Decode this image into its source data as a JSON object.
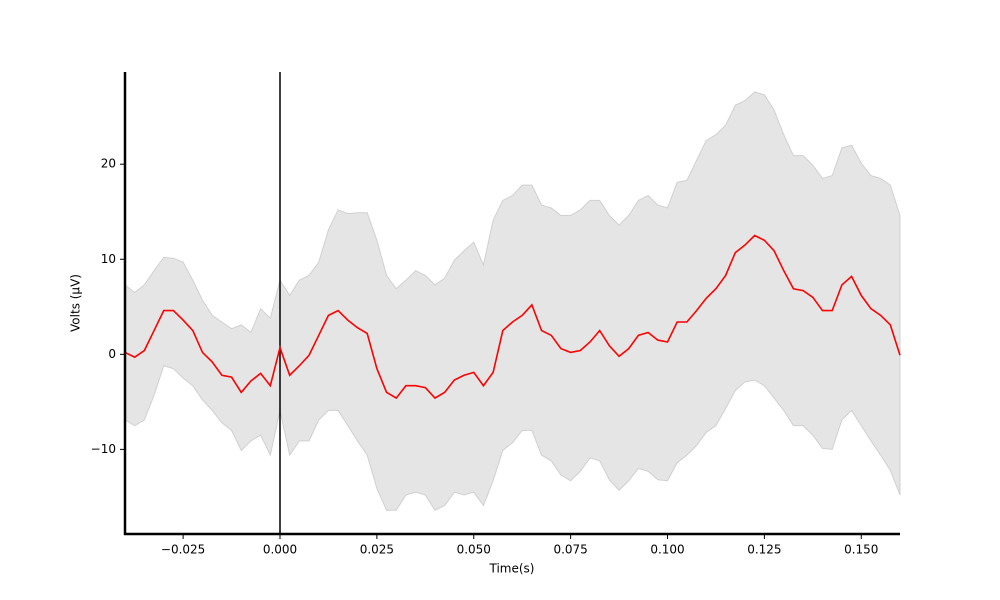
{
  "chart_data": {
    "type": "line",
    "xlabel": "Time(s)",
    "ylabel": "Volts (μV)",
    "xlim": [
      -0.04,
      0.16
    ],
    "ylim": [
      -18.9,
      29.7
    ],
    "xticks": [
      {
        "value": -0.025,
        "label": "−0.025"
      },
      {
        "value": 0,
        "label": "0.000"
      },
      0.025,
      {
        "value": 0.05,
        "label": "0.050"
      },
      0.075,
      {
        "value": 0.1,
        "label": "0.100"
      },
      0.125,
      {
        "value": 0.15,
        "label": "0.150"
      }
    ],
    "yticks": [
      {
        "value": -10,
        "label": "−10"
      },
      0,
      10,
      20
    ],
    "vline": 0,
    "x": [
      -0.04,
      -0.0375,
      -0.035,
      -0.0325,
      -0.03,
      -0.0275,
      -0.025,
      -0.0225,
      -0.02,
      -0.0175,
      -0.015,
      -0.0125,
      -0.01,
      -0.0075,
      -0.005,
      -0.0025,
      0,
      0.0025,
      0.005,
      0.0075,
      0.01,
      0.0125,
      0.015,
      0.0175,
      0.02,
      0.0225,
      0.025,
      0.0275,
      0.03,
      0.0325,
      0.035,
      0.0375,
      0.04,
      0.0425,
      0.045,
      0.0475,
      0.05,
      0.0525,
      0.055,
      0.0575,
      0.06,
      0.0625,
      0.065,
      0.0675,
      0.07,
      0.0725,
      0.075,
      0.0775,
      0.08,
      0.0825,
      0.085,
      0.0875,
      0.09,
      0.0925,
      0.095,
      0.0975,
      0.1,
      0.1025,
      0.105,
      0.1075,
      0.11,
      0.1125,
      0.115,
      0.1175,
      0.12,
      0.1225,
      0.125,
      0.1275,
      0.13,
      0.1325,
      0.135,
      0.1375,
      0.14,
      0.1425,
      0.145,
      0.1475,
      0.15,
      0.1525,
      0.155,
      0.1575,
      0.16
    ],
    "series": [
      {
        "color": "#ff0000",
        "values": [
          0.2,
          -0.3,
          0.4,
          2.5,
          4.6,
          4.6,
          3.6,
          2.5,
          0.2,
          -0.8,
          -2.2,
          -2.4,
          -4.0,
          -2.8,
          -2.0,
          -3.3,
          0.7,
          -2.2,
          -1.2,
          -0.1,
          2.0,
          4.1,
          4.6,
          3.6,
          2.8,
          2.2,
          -1.5,
          -4.0,
          -4.6,
          -3.3,
          -3.3,
          -3.5,
          -4.6,
          -4.0,
          -2.7,
          -2.2,
          -1.9,
          -3.3,
          -1.9,
          2.5,
          3.4,
          4.1,
          5.2,
          2.5,
          2.0,
          0.6,
          0.2,
          0.4,
          1.3,
          2.5,
          0.9,
          -0.2,
          0.6,
          2.0,
          2.3,
          1.5,
          1.3,
          3.4,
          3.4,
          4.6,
          5.9,
          6.9,
          8.3,
          10.7,
          11.5,
          12.5,
          12.0,
          10.9,
          8.8,
          6.9,
          6.7,
          6.0,
          4.6,
          4.6,
          7.3,
          8.2,
          6.2,
          4.8,
          4.1,
          3.1,
          -0.1
        ]
      }
    ],
    "band": {
      "color": "#e5e5e5",
      "upper": [
        7.3,
        6.5,
        7.3,
        8.8,
        10.2,
        10.1,
        9.7,
        7.8,
        5.7,
        4.1,
        3.4,
        2.7,
        3.1,
        2.3,
        4.8,
        3.8,
        7.8,
        6.2,
        7.8,
        8.3,
        9.7,
        13.1,
        15.2,
        14.8,
        14.9,
        14.9,
        12.0,
        8.3,
        6.9,
        7.8,
        8.8,
        8.3,
        7.3,
        8.0,
        9.9,
        10.9,
        11.8,
        9.4,
        14.1,
        16.2,
        16.7,
        17.8,
        17.8,
        15.7,
        15.4,
        14.6,
        14.6,
        15.2,
        16.2,
        16.2,
        14.6,
        13.6,
        14.6,
        16.2,
        16.7,
        15.7,
        15.4,
        18.1,
        18.3,
        20.4,
        22.5,
        23.1,
        24.1,
        26.2,
        26.7,
        27.6,
        27.3,
        25.7,
        23.1,
        20.9,
        20.9,
        19.9,
        18.5,
        18.8,
        21.7,
        22.0,
        20.1,
        18.8,
        18.5,
        17.8,
        14.6
      ],
      "lower": [
        -6.9,
        -7.5,
        -6.9,
        -4.3,
        -1.2,
        -1.5,
        -2.5,
        -3.3,
        -4.8,
        -5.9,
        -7.2,
        -8.0,
        -10.1,
        -9.1,
        -8.5,
        -10.6,
        -5.9,
        -10.6,
        -9.1,
        -9.1,
        -6.9,
        -5.9,
        -5.9,
        -7.5,
        -9.1,
        -10.6,
        -14.1,
        -16.4,
        -16.4,
        -14.8,
        -14.5,
        -14.8,
        -16.4,
        -15.9,
        -14.5,
        -14.8,
        -14.5,
        -15.9,
        -13.3,
        -10.1,
        -9.3,
        -8.0,
        -8.0,
        -10.6,
        -11.2,
        -12.7,
        -13.3,
        -12.3,
        -10.9,
        -11.2,
        -13.2,
        -14.3,
        -13.3,
        -12.0,
        -12.3,
        -13.2,
        -13.3,
        -11.4,
        -10.6,
        -9.6,
        -8.2,
        -7.5,
        -5.7,
        -3.8,
        -2.9,
        -2.7,
        -3.3,
        -4.6,
        -5.9,
        -7.5,
        -7.5,
        -8.5,
        -9.9,
        -10.0,
        -6.9,
        -5.9,
        -7.5,
        -9.1,
        -10.6,
        -12.2,
        -14.8
      ]
    }
  }
}
